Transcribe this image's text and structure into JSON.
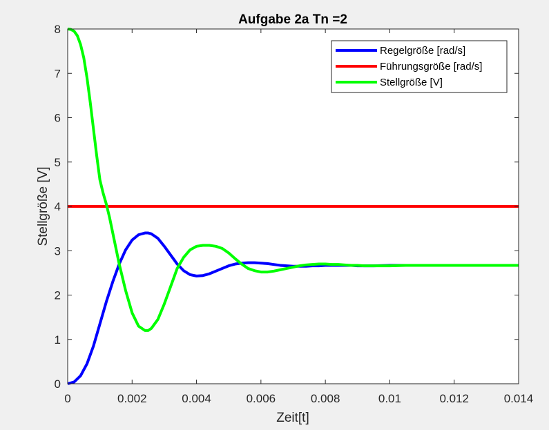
{
  "chart_data": {
    "type": "line",
    "title": "Aufgabe 2a Tn =2",
    "xlabel": "Zeit[t]",
    "ylabel": "Stellgröße [V]",
    "xlim": [
      0,
      0.014
    ],
    "ylim": [
      0,
      8
    ],
    "xticks": [
      0,
      0.002,
      0.004,
      0.006,
      0.008,
      0.01,
      0.012,
      0.014
    ],
    "xtick_labels": [
      "0",
      "0.002",
      "0.004",
      "0.006",
      "0.008",
      "0.01",
      "0.012",
      "0.014"
    ],
    "yticks": [
      0,
      1,
      2,
      3,
      4,
      5,
      6,
      7,
      8
    ],
    "ytick_labels": [
      "0",
      "1",
      "2",
      "3",
      "4",
      "5",
      "6",
      "7",
      "8"
    ],
    "grid": false,
    "legend_position": "top-right",
    "series": [
      {
        "name": "Regelgröße [rad/s]",
        "color": "#0000ff",
        "x": [
          0,
          0.0002,
          0.0004,
          0.0006,
          0.0008,
          0.001,
          0.0012,
          0.0014,
          0.0016,
          0.0018,
          0.002,
          0.0022,
          0.0024,
          0.0025,
          0.0026,
          0.0028,
          0.003,
          0.0032,
          0.0034,
          0.0036,
          0.0038,
          0.004,
          0.0042,
          0.0044,
          0.0046,
          0.0048,
          0.005,
          0.0052,
          0.0054,
          0.0056,
          0.0058,
          0.006,
          0.0062,
          0.0064,
          0.0066,
          0.0068,
          0.007,
          0.0072,
          0.0074,
          0.0076,
          0.0078,
          0.008,
          0.0082,
          0.0084,
          0.0086,
          0.0088,
          0.009,
          0.0095,
          0.01,
          0.0105,
          0.011,
          0.012,
          0.013,
          0.014
        ],
        "y": [
          0,
          0.04,
          0.18,
          0.45,
          0.85,
          1.35,
          1.85,
          2.3,
          2.7,
          3.02,
          3.24,
          3.36,
          3.4,
          3.4,
          3.38,
          3.28,
          3.1,
          2.9,
          2.7,
          2.55,
          2.46,
          2.43,
          2.44,
          2.48,
          2.54,
          2.6,
          2.66,
          2.7,
          2.72,
          2.73,
          2.73,
          2.72,
          2.71,
          2.69,
          2.67,
          2.66,
          2.65,
          2.65,
          2.65,
          2.66,
          2.66,
          2.67,
          2.67,
          2.67,
          2.67,
          2.67,
          2.66,
          2.66,
          2.67,
          2.67,
          2.67,
          2.67,
          2.67,
          2.67
        ]
      },
      {
        "name": "Führungsgröße [rad/s]",
        "color": "#ff0000",
        "x": [
          0,
          0.014
        ],
        "y": [
          4,
          4
        ]
      },
      {
        "name": "Stellgröße [V]",
        "color": "#00ff00",
        "x": [
          0,
          0.0001,
          0.0002,
          0.0003,
          0.0004,
          0.0005,
          0.0006,
          0.0007,
          0.0008,
          0.0009,
          0.001,
          0.0011,
          0.0012,
          0.0013,
          0.0014,
          0.0016,
          0.0018,
          0.002,
          0.0022,
          0.0024,
          0.0025,
          0.0026,
          0.0028,
          0.003,
          0.0032,
          0.0034,
          0.0036,
          0.0038,
          0.004,
          0.0042,
          0.0044,
          0.0046,
          0.0048,
          0.005,
          0.0052,
          0.0054,
          0.0056,
          0.0058,
          0.006,
          0.0062,
          0.0064,
          0.0066,
          0.0068,
          0.007,
          0.0072,
          0.0074,
          0.0076,
          0.0078,
          0.008,
          0.0082,
          0.0084,
          0.0086,
          0.0088,
          0.009,
          0.0092,
          0.0094,
          0.0096,
          0.0098,
          0.01,
          0.0105,
          0.011,
          0.012,
          0.013,
          0.014
        ],
        "y": [
          8,
          7.99,
          7.95,
          7.85,
          7.65,
          7.35,
          6.9,
          6.35,
          5.75,
          5.15,
          4.6,
          4.3,
          4.05,
          3.75,
          3.4,
          2.7,
          2.1,
          1.6,
          1.3,
          1.2,
          1.2,
          1.25,
          1.45,
          1.8,
          2.2,
          2.6,
          2.85,
          3.02,
          3.1,
          3.12,
          3.12,
          3.1,
          3.05,
          2.95,
          2.82,
          2.7,
          2.6,
          2.55,
          2.52,
          2.52,
          2.54,
          2.57,
          2.6,
          2.63,
          2.66,
          2.68,
          2.69,
          2.7,
          2.7,
          2.69,
          2.69,
          2.68,
          2.67,
          2.67,
          2.66,
          2.66,
          2.66,
          2.66,
          2.66,
          2.67,
          2.67,
          2.67,
          2.67,
          2.67
        ]
      }
    ]
  }
}
